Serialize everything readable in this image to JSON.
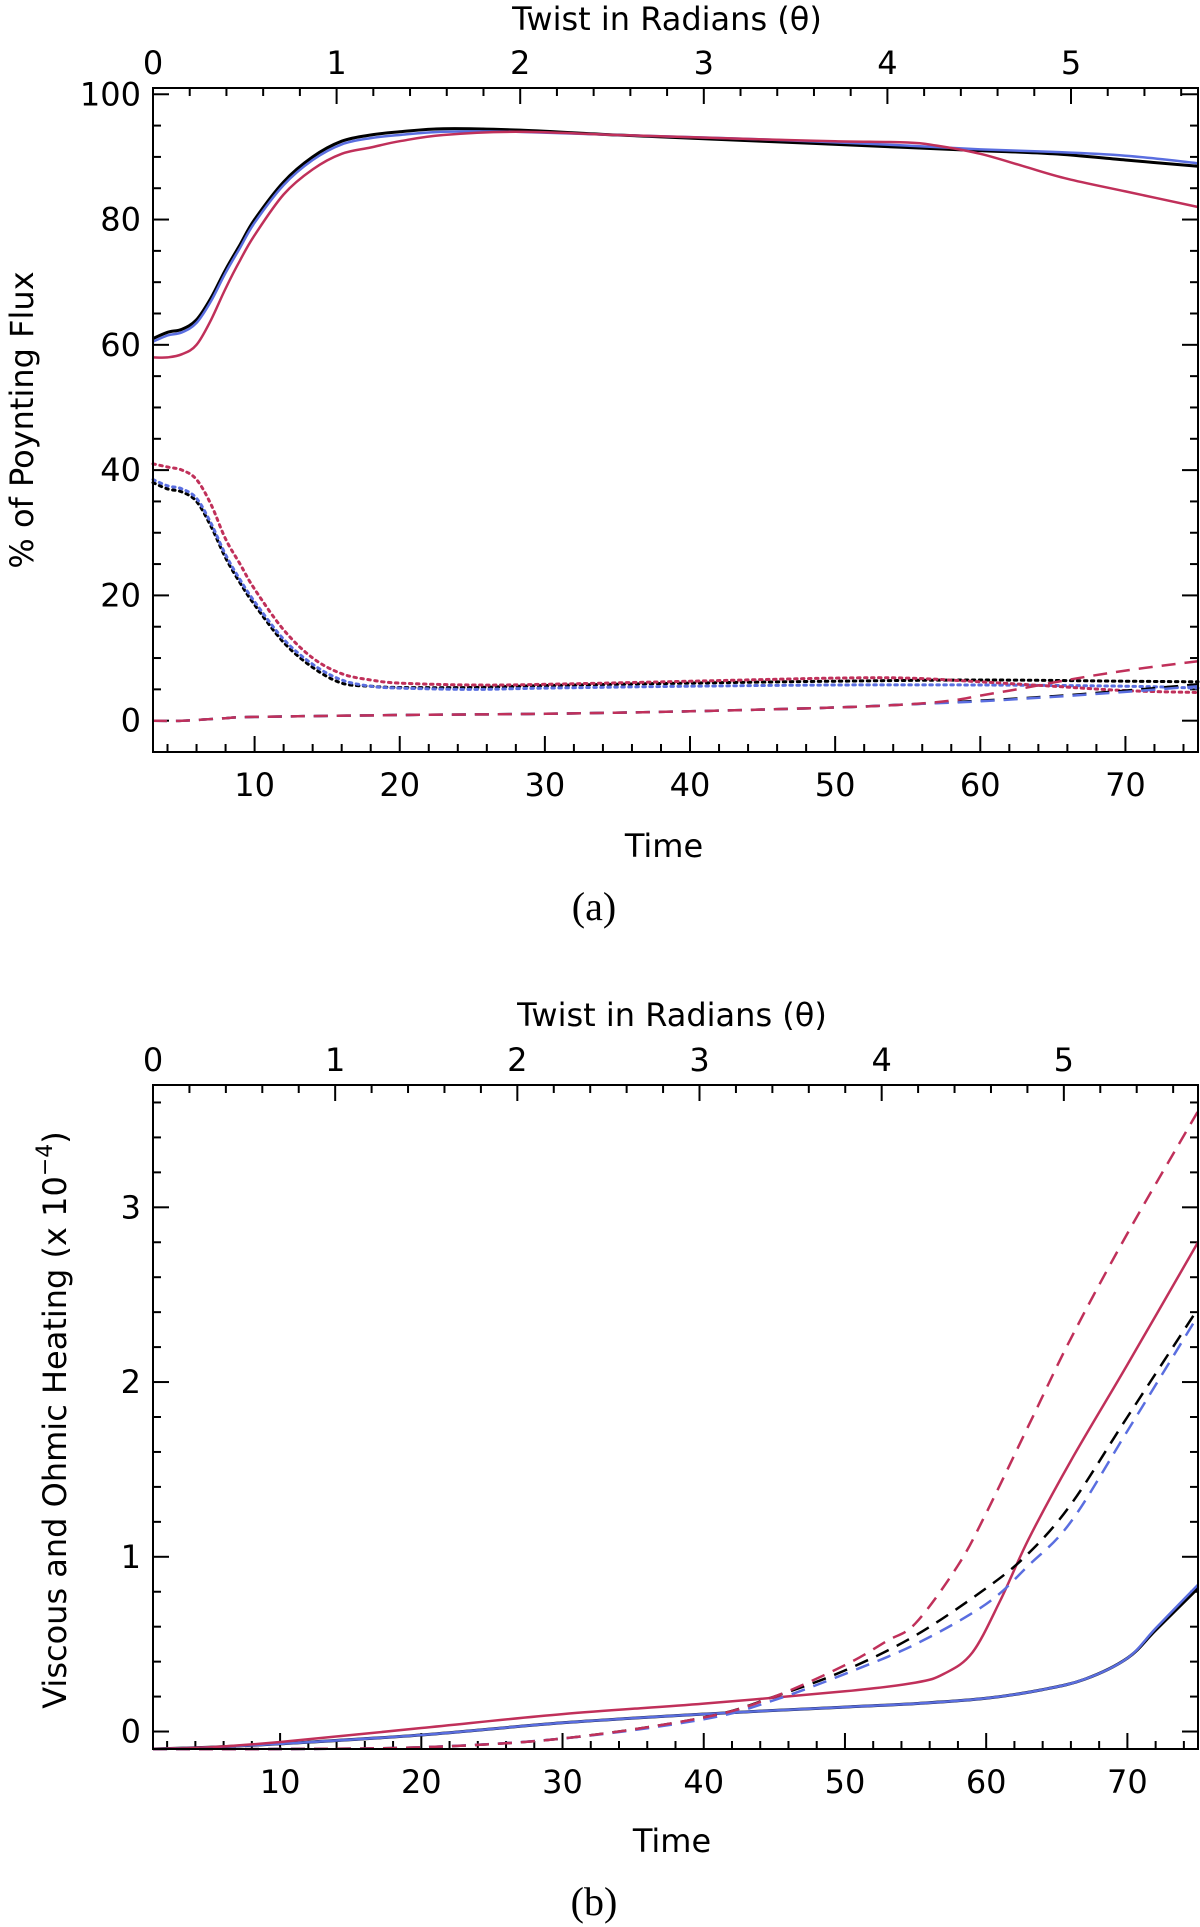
{
  "chart_data": [
    {
      "type": "line",
      "panel_label": "(a)",
      "xlabel": "Time",
      "ylabel": "% of Poynting Flux",
      "top_axis_label": "Twist in Radians (θ)",
      "xlim": [
        3,
        75
      ],
      "ylim": [
        -5,
        101
      ],
      "x_ticks": [
        10,
        20,
        30,
        40,
        50,
        60,
        70
      ],
      "y_ticks": [
        0,
        20,
        40,
        60,
        80,
        100
      ],
      "top_ticks": [
        0,
        1,
        2,
        3,
        4,
        5
      ],
      "top_tick_time": [
        3,
        15.65,
        28.3,
        40.95,
        53.6,
        66.25
      ],
      "series": [
        {
          "name": "black solid",
          "color": "#000000",
          "dash": "solid",
          "x": [
            3,
            4,
            5,
            6,
            7,
            8,
            9,
            10,
            12,
            14,
            16,
            18,
            20,
            23,
            28,
            35,
            45,
            55,
            60,
            65,
            70,
            75
          ],
          "y": [
            61,
            62,
            62.5,
            64,
            67.5,
            72,
            76,
            80,
            86,
            90,
            92.5,
            93.5,
            94,
            94.5,
            94.3,
            93.5,
            92.5,
            91.5,
            91,
            90.5,
            89.5,
            88.5
          ]
        },
        {
          "name": "blue solid",
          "color": "#5a6ee0",
          "dash": "solid",
          "x": [
            3,
            4,
            5,
            6,
            7,
            8,
            9,
            10,
            12,
            14,
            16,
            18,
            20,
            23,
            28,
            35,
            45,
            55,
            60,
            65,
            70,
            75
          ],
          "y": [
            60.5,
            61.5,
            62,
            63.5,
            67,
            71.5,
            75.5,
            79.5,
            85.5,
            89.5,
            92,
            93,
            93.5,
            94,
            94,
            93.5,
            92.8,
            91.8,
            91.2,
            90.8,
            90.2,
            89
          ]
        },
        {
          "name": "red solid",
          "color": "#c0305a",
          "dash": "solid",
          "x": [
            3,
            4,
            5,
            6,
            7,
            8,
            9,
            10,
            12,
            14,
            16,
            18,
            20,
            23,
            28,
            35,
            45,
            50,
            55,
            57,
            60,
            63,
            66,
            70,
            75
          ],
          "y": [
            58,
            58,
            58.5,
            60,
            64,
            69,
            73.5,
            77.5,
            84,
            88,
            90.5,
            91.5,
            92.5,
            93.5,
            94,
            93.5,
            92.8,
            92.5,
            92.3,
            91.8,
            90.5,
            88.5,
            86.5,
            84.5,
            82
          ]
        },
        {
          "name": "black dotted",
          "color": "#000000",
          "dash": "dotted",
          "x": [
            3,
            4,
            5,
            6,
            7,
            8,
            9,
            10,
            12,
            14,
            16,
            18,
            20,
            25,
            30,
            40,
            50,
            60,
            70,
            75
          ],
          "y": [
            38,
            37,
            36.5,
            35,
            31,
            26,
            22,
            18.5,
            12.5,
            8.5,
            6,
            5.5,
            5.3,
            5.3,
            5.6,
            6,
            6.3,
            6.5,
            6.3,
            6.2
          ]
        },
        {
          "name": "blue dotted",
          "color": "#5a6ee0",
          "dash": "dotted",
          "x": [
            3,
            4,
            5,
            6,
            7,
            8,
            9,
            10,
            12,
            14,
            16,
            18,
            20,
            25,
            30,
            40,
            50,
            60,
            70,
            75
          ],
          "y": [
            38.5,
            37.5,
            37,
            35.5,
            31.5,
            26.5,
            22.5,
            19,
            13,
            9,
            6.5,
            5.5,
            5.2,
            5,
            5.2,
            5.5,
            5.7,
            5.7,
            5.5,
            5.2
          ]
        },
        {
          "name": "red dotted",
          "color": "#c0305a",
          "dash": "dotted",
          "x": [
            3,
            4,
            5,
            6,
            7,
            8,
            9,
            10,
            12,
            14,
            16,
            18,
            20,
            25,
            30,
            40,
            50,
            55,
            60,
            65,
            70,
            75
          ],
          "y": [
            41,
            40.5,
            40,
            38.5,
            34.5,
            29,
            25,
            21,
            14.5,
            10,
            7.5,
            6.5,
            6,
            5.7,
            5.8,
            6.3,
            6.8,
            6.8,
            6.2,
            5.5,
            4.8,
            4.5
          ]
        },
        {
          "name": "black dashed",
          "color": "#000000",
          "dash": "dashed",
          "x": [
            3,
            5,
            8,
            10,
            20,
            30,
            40,
            50,
            55,
            60,
            65,
            70,
            75
          ],
          "y": [
            0,
            0,
            0.4,
            0.6,
            0.9,
            1.1,
            1.5,
            2.1,
            2.6,
            3.2,
            3.9,
            4.8,
            5.8
          ]
        },
        {
          "name": "blue dashed",
          "color": "#5a6ee0",
          "dash": "dashed",
          "x": [
            3,
            5,
            8,
            10,
            20,
            30,
            40,
            50,
            55,
            60,
            65,
            70,
            75
          ],
          "y": [
            0,
            0,
            0.4,
            0.6,
            0.9,
            1.1,
            1.5,
            2.1,
            2.6,
            3.1,
            3.8,
            4.6,
            5.5
          ]
        },
        {
          "name": "red dashed",
          "color": "#c0305a",
          "dash": "dashed",
          "x": [
            3,
            5,
            8,
            10,
            20,
            30,
            40,
            50,
            55,
            58,
            60,
            63,
            66,
            70,
            75
          ],
          "y": [
            0,
            0,
            0.4,
            0.6,
            0.9,
            1.1,
            1.5,
            2.1,
            2.6,
            3.2,
            4,
            5.2,
            6.5,
            8,
            9.5
          ]
        }
      ]
    },
    {
      "type": "line",
      "panel_label": "(b)",
      "xlabel": "Time",
      "ylabel": "Viscous and Ohmic Heating (x 10",
      "ylabel_exponent": "−4",
      "ylabel_close": ")",
      "top_axis_label": "Twist in Radians (θ)",
      "xlim": [
        1,
        75
      ],
      "ylim": [
        -0.1,
        3.7
      ],
      "x_ticks": [
        10,
        20,
        30,
        40,
        50,
        60,
        70
      ],
      "y_ticks": [
        0,
        1,
        2,
        3
      ],
      "top_ticks": [
        0,
        1,
        2,
        3,
        4,
        5
      ],
      "top_tick_time": [
        1,
        13.9,
        26.8,
        39.7,
        52.6,
        65.5
      ],
      "series": [
        {
          "name": "black solid",
          "color": "#000000",
          "dash": "solid",
          "x": [
            1,
            5,
            10,
            20,
            30,
            40,
            50,
            55,
            60,
            64,
            67,
            70,
            72,
            75
          ],
          "y": [
            -0.1,
            -0.09,
            -0.07,
            -0.02,
            0.05,
            0.1,
            0.14,
            0.16,
            0.19,
            0.24,
            0.3,
            0.42,
            0.58,
            0.82
          ]
        },
        {
          "name": "blue solid",
          "color": "#5a6ee0",
          "dash": "solid",
          "x": [
            1,
            5,
            10,
            20,
            30,
            40,
            50,
            55,
            60,
            64,
            67,
            70,
            72,
            75
          ],
          "y": [
            -0.1,
            -0.09,
            -0.07,
            -0.02,
            0.05,
            0.1,
            0.14,
            0.16,
            0.19,
            0.24,
            0.3,
            0.42,
            0.59,
            0.84
          ]
        },
        {
          "name": "red solid",
          "color": "#c0305a",
          "dash": "solid",
          "x": [
            1,
            5,
            10,
            20,
            30,
            40,
            50,
            55,
            57,
            59,
            61,
            63,
            66,
            70,
            75
          ],
          "y": [
            -0.1,
            -0.09,
            -0.06,
            0.02,
            0.1,
            0.16,
            0.23,
            0.28,
            0.33,
            0.45,
            0.75,
            1.1,
            1.55,
            2.1,
            2.8
          ]
        },
        {
          "name": "black dashed",
          "color": "#000000",
          "dash": "dashed",
          "x": [
            1,
            10,
            20,
            30,
            40,
            45,
            50,
            55,
            60,
            63,
            66,
            70,
            75
          ],
          "y": [
            -0.1,
            -0.1,
            -0.09,
            -0.04,
            0.08,
            0.2,
            0.35,
            0.55,
            0.82,
            1.02,
            1.3,
            1.8,
            2.42
          ]
        },
        {
          "name": "blue dashed",
          "color": "#5a6ee0",
          "dash": "dashed",
          "x": [
            1,
            10,
            20,
            30,
            40,
            45,
            50,
            55,
            60,
            63,
            66,
            70,
            75
          ],
          "y": [
            -0.1,
            -0.1,
            -0.09,
            -0.04,
            0.07,
            0.18,
            0.33,
            0.5,
            0.73,
            0.95,
            1.2,
            1.72,
            2.38
          ]
        },
        {
          "name": "red dashed",
          "color": "#c0305a",
          "dash": "dashed",
          "x": [
            1,
            10,
            20,
            30,
            40,
            45,
            50,
            53,
            55,
            58,
            60,
            63,
            66,
            70,
            75
          ],
          "y": [
            -0.1,
            -0.1,
            -0.09,
            -0.04,
            0.08,
            0.2,
            0.38,
            0.52,
            0.62,
            0.95,
            1.25,
            1.75,
            2.25,
            2.85,
            3.55
          ]
        }
      ]
    }
  ]
}
